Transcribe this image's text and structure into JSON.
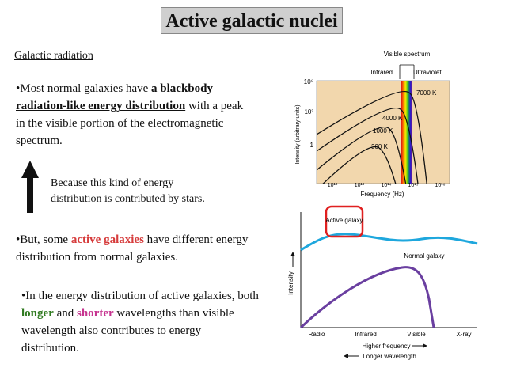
{
  "title": "Active galactic nuclei",
  "subtitle": "Galactic radiation",
  "para1": {
    "bullet": "•Most normal galaxies have ",
    "emph": "a blackbody radiation-like energy distribution",
    "rest": " with a peak in the visible portion of the electromagnetic spectrum."
  },
  "note": "Because this kind of energy distribution is contributed by stars.",
  "para2": {
    "start": "•But, some ",
    "emph": "active galaxies",
    "rest": " have different energy distribution from normal galaxies."
  },
  "para3": {
    "start": "•In the energy distribution of active galaxies, both ",
    "longer": "longer",
    "and": " and ",
    "shorter": "shorter",
    "rest": " wavelengths than visible wavelength also contributes to energy distribution."
  },
  "chart_data": [
    {
      "type": "line",
      "title": "",
      "xlabel": "Frequency (Hz)",
      "ylabel": "Intensity (arbitrary units)",
      "x_ticks": [
        "10¹²",
        "10¹³",
        "10¹⁴",
        "10¹⁵",
        "10¹⁶"
      ],
      "y_ticks": [
        "1",
        "10³",
        "10⁶"
      ],
      "region_labels": [
        "Infrared",
        "Visible spectrum",
        "Ultraviolet"
      ],
      "series": [
        {
          "name": "300 K"
        },
        {
          "name": "1000 K"
        },
        {
          "name": "4000 K"
        },
        {
          "name": "7000 K"
        }
      ]
    },
    {
      "type": "line",
      "title": "",
      "ylabel": "Intensity",
      "categories": [
        "Radio",
        "Infrared",
        "Visible",
        "X-ray"
      ],
      "x_arrows": [
        "Higher frequency",
        "Longer wavelength"
      ],
      "series": [
        {
          "name": "Active galaxy",
          "color": "#1ea7dd"
        },
        {
          "name": "Normal galaxy",
          "color": "#6a3fa0"
        }
      ]
    }
  ],
  "colors": {
    "active": "#d63b3b",
    "longer": "#2f7a1f",
    "shorter": "#c6338f",
    "plot_bg": "#f2d7ad"
  }
}
